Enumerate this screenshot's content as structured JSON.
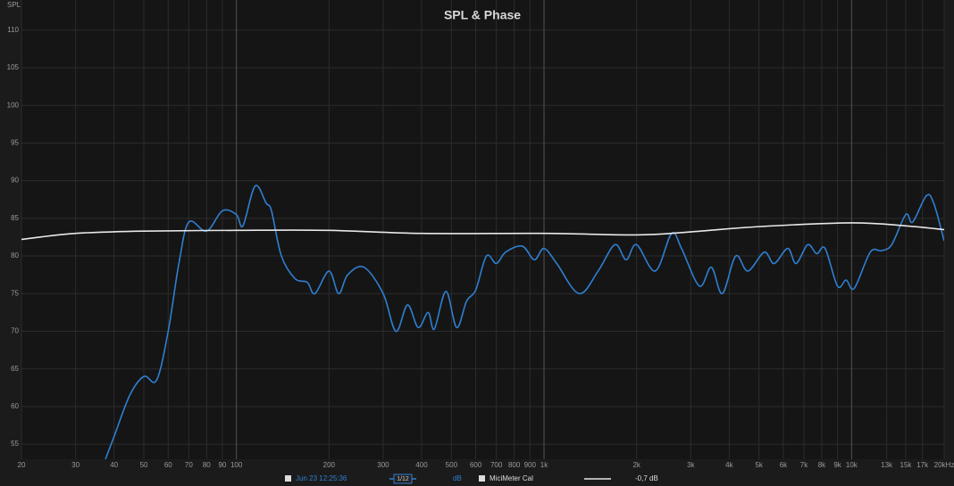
{
  "chart_data": {
    "type": "line",
    "title": "SPL & Phase",
    "y_label": "SPL",
    "log_x": true,
    "grid": true,
    "xlim": [
      20,
      20000
    ],
    "ylim": [
      53,
      114
    ],
    "xticks": [
      20,
      30,
      40,
      50,
      60,
      70,
      80,
      90,
      100,
      200,
      300,
      400,
      500,
      600,
      700,
      800,
      900,
      {
        "value": 1000,
        "label": "1k"
      },
      {
        "value": 2000,
        "label": "2k"
      },
      {
        "value": 3000,
        "label": "3k"
      },
      {
        "value": 4000,
        "label": "4k"
      },
      {
        "value": 5000,
        "label": "5k"
      },
      {
        "value": 6000,
        "label": "6k"
      },
      {
        "value": 7000,
        "label": "7k"
      },
      {
        "value": 8000,
        "label": "8k"
      },
      {
        "value": 9000,
        "label": "9k"
      },
      {
        "value": 10000,
        "label": "10k"
      },
      {
        "value": 13000,
        "label": "13k"
      },
      {
        "value": 15000,
        "label": "15k"
      },
      {
        "value": 17000,
        "label": "17k"
      },
      {
        "value": 20000,
        "label": "20kHz"
      }
    ],
    "yticks": [
      55,
      60,
      65,
      70,
      75,
      80,
      85,
      90,
      95,
      100,
      105,
      110
    ],
    "series": [
      {
        "name": "Jun 23 12:25:36",
        "color": "#2f7fd0",
        "x": [
          37.5,
          40,
          45,
          50,
          55,
          60,
          65,
          70,
          80,
          90,
          100,
          105,
          115,
          125,
          130,
          140,
          155,
          170,
          180,
          200,
          215,
          230,
          260,
          300,
          330,
          360,
          390,
          420,
          440,
          480,
          520,
          560,
          600,
          650,
          700,
          750,
          850,
          930,
          1000,
          1100,
          1300,
          1500,
          1700,
          1850,
          2000,
          2300,
          2600,
          2800,
          3200,
          3500,
          3800,
          4200,
          4600,
          5200,
          5600,
          6200,
          6600,
          7200,
          7700,
          8200,
          9000,
          9600,
          10200,
          11500,
          12500,
          13500,
          15000,
          15800,
          17500,
          18500,
          20000
        ],
        "values": [
          53,
          56,
          61.5,
          64,
          63.5,
          70,
          79,
          84.5,
          83.3,
          86,
          85.5,
          84,
          89.3,
          87,
          86,
          80,
          77,
          76.5,
          75,
          78,
          75,
          77.5,
          78.5,
          75,
          70,
          73.5,
          70.5,
          72.5,
          70.3,
          75.3,
          70.5,
          74,
          75.5,
          80,
          79,
          80.5,
          81.3,
          79.5,
          81,
          79,
          75,
          78,
          81.5,
          79.5,
          81.5,
          78,
          83,
          81,
          76,
          78.5,
          75,
          80,
          78,
          80.5,
          79,
          81,
          79,
          81.5,
          80.3,
          81,
          76,
          76.8,
          75.7,
          80.5,
          80.7,
          81.5,
          85.5,
          84.5,
          88,
          87,
          82
        ]
      },
      {
        "name": "MiciMeter Cal",
        "color": "#e8e8e8",
        "x": [
          20,
          30,
          50,
          100,
          200,
          400,
          1000,
          2000,
          3000,
          5000,
          10000,
          15000,
          20000
        ],
        "values": [
          82.2,
          83,
          83.3,
          83.4,
          83.4,
          83,
          83,
          82.8,
          83.2,
          83.9,
          84.4,
          84,
          83.5
        ]
      }
    ],
    "smoothing_label": "1/12",
    "unit_label": "dB",
    "offset_label": "-0,7 dB"
  }
}
